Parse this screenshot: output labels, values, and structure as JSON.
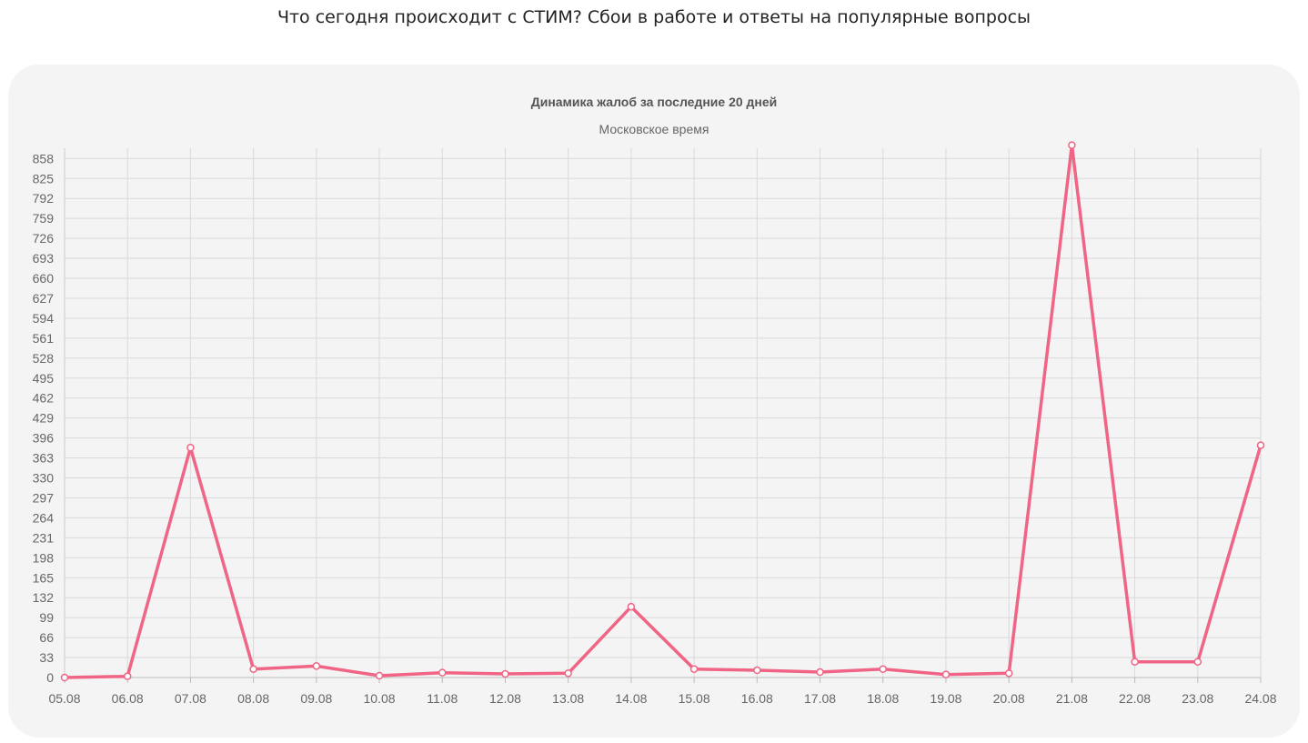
{
  "page": {
    "title": "Что сегодня происходит с СТИМ? Сбои в работе и ответы на популярные вопросы"
  },
  "chart_data": {
    "type": "line",
    "title": "Динамика жалоб за последние 20 дней",
    "subtitle": "Московское время",
    "xlabel": "",
    "ylabel": "",
    "categories": [
      "05.08",
      "06.08",
      "07.08",
      "08.08",
      "09.08",
      "10.08",
      "11.08",
      "12.08",
      "13.08",
      "14.08",
      "15.08",
      "16.08",
      "17.08",
      "18.08",
      "19.08",
      "20.08",
      "21.08",
      "22.08",
      "23.08",
      "24.08"
    ],
    "series": [
      {
        "values": [
          0,
          2,
          380,
          14,
          19,
          3,
          8,
          6,
          7,
          117,
          14,
          12,
          9,
          14,
          5,
          7,
          880,
          26,
          26,
          384
        ]
      }
    ],
    "y_ticks": [
      0,
      33,
      66,
      99,
      132,
      165,
      198,
      231,
      264,
      297,
      330,
      363,
      396,
      429,
      462,
      495,
      528,
      561,
      594,
      627,
      660,
      693,
      726,
      759,
      792,
      825,
      858
    ],
    "ylim": [
      0,
      875
    ],
    "grid": true,
    "legend": "none",
    "colors": {
      "line": "#f06585",
      "marker_fill": "#ffffff",
      "grid": "#d9d9d9",
      "axis_text": "#666666",
      "card_background": "#f4f4f4"
    }
  }
}
